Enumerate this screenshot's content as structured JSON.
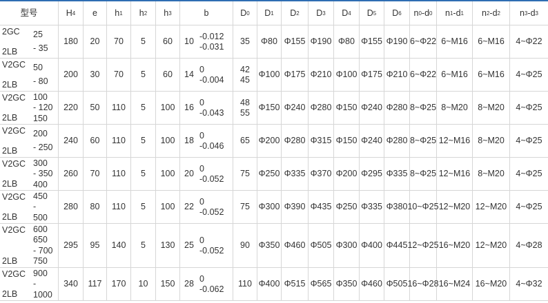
{
  "accent_color": "#2f6db3",
  "headers": [
    [
      {
        "t": "型号"
      }
    ],
    [
      {
        "t": "H"
      },
      {
        "s": "4"
      }
    ],
    [
      {
        "t": "e"
      }
    ],
    [
      {
        "t": "h"
      },
      {
        "s": "1"
      }
    ],
    [
      {
        "t": "h"
      },
      {
        "s": "2"
      }
    ],
    [
      {
        "t": "h"
      },
      {
        "s": "3"
      }
    ],
    [
      {
        "t": "b"
      }
    ],
    [
      {
        "t": "D"
      },
      {
        "s": "0"
      }
    ],
    [
      {
        "t": "D"
      },
      {
        "s": "1"
      }
    ],
    [
      {
        "t": "D"
      },
      {
        "s": "2"
      }
    ],
    [
      {
        "t": "D"
      },
      {
        "s": "3"
      }
    ],
    [
      {
        "t": "D"
      },
      {
        "s": "4"
      }
    ],
    [
      {
        "t": "D"
      },
      {
        "s": "5"
      }
    ],
    [
      {
        "t": "D"
      },
      {
        "s": "6"
      }
    ],
    [
      {
        "t": "n"
      },
      {
        "s": "0"
      },
      {
        "t": "-d"
      },
      {
        "s": "0"
      }
    ],
    [
      {
        "t": "n"
      },
      {
        "s": "1"
      },
      {
        "t": "-d"
      },
      {
        "s": "1"
      }
    ],
    [
      {
        "t": "n"
      },
      {
        "s": "2"
      },
      {
        "t": "-d"
      },
      {
        "s": "2"
      }
    ],
    [
      {
        "t": "n"
      },
      {
        "s": "3"
      },
      {
        "t": "-d"
      },
      {
        "s": "3"
      }
    ]
  ],
  "rows": [
    {
      "model_top": "2GC",
      "model_bottom": "2LB",
      "sizes": [
        "25",
        "- 35"
      ],
      "H4": "180",
      "e": "20",
      "h1": "70",
      "h2": "5",
      "h3": "60",
      "b": "10",
      "b_tol": [
        "-0.012",
        "-0.031"
      ],
      "D0": [
        "35"
      ],
      "D1": "Φ80",
      "D2": "Φ155",
      "D3": "Φ190",
      "D4": "Φ80",
      "D5": "Φ155",
      "D6": "Φ190",
      "n0d0": "6~Φ22",
      "n1d1": "6~M16",
      "n2d2": "6~M16",
      "n3d3": "4~Φ22"
    },
    {
      "model_top": "V2GC",
      "model_bottom": "2LB",
      "sizes": [
        "50",
        "- 80"
      ],
      "H4": "200",
      "e": "30",
      "h1": "70",
      "h2": "5",
      "h3": "60",
      "b": "14",
      "b_tol": [
        "0",
        "-0.004"
      ],
      "D0": [
        "42",
        "45"
      ],
      "D1": "Φ100",
      "D2": "Φ175",
      "D3": "Φ210",
      "D4": "Φ100",
      "D5": "Φ175",
      "D6": "Φ210",
      "n0d0": "6~Φ22",
      "n1d1": "6~M16",
      "n2d2": "6~M16",
      "n3d3": "4~Φ25"
    },
    {
      "model_top": "V2GC",
      "model_bottom": "2LB",
      "sizes": [
        "100",
        "- 120",
        "150"
      ],
      "H4": "220",
      "e": "50",
      "h1": "110",
      "h2": "5",
      "h3": "100",
      "b": "16",
      "b_tol": [
        "0",
        "-0.043"
      ],
      "D0": [
        "48",
        "55"
      ],
      "D1": "Φ150",
      "D2": "Φ240",
      "D3": "Φ280",
      "D4": "Φ150",
      "D5": "Φ240",
      "D6": "Φ280",
      "n0d0": "8~Φ25",
      "n1d1": "8~M20",
      "n2d2": "8~M20",
      "n3d3": "4~Φ25"
    },
    {
      "model_top": "V2GC",
      "model_bottom": "2LB",
      "sizes": [
        "200",
        "- 250"
      ],
      "H4": "240",
      "e": "60",
      "h1": "110",
      "h2": "5",
      "h3": "100",
      "b": "18",
      "b_tol": [
        "0",
        "-0.046"
      ],
      "D0": [
        "65"
      ],
      "D1": "Φ200",
      "D2": "Φ280",
      "D3": "Φ315",
      "D4": "Φ150",
      "D5": "Φ240",
      "D6": "Φ280",
      "n0d0": "8~Φ25",
      "n1d1": "12~M16",
      "n2d2": "8~M20",
      "n3d3": "4~Φ25"
    },
    {
      "model_top": "V2GC",
      "model_bottom": "2LB",
      "sizes": [
        "300",
        "- 350",
        "400"
      ],
      "H4": "260",
      "e": "70",
      "h1": "110",
      "h2": "5",
      "h3": "100",
      "b": "20",
      "b_tol": [
        "0",
        "-0.052"
      ],
      "D0": [
        "75"
      ],
      "D1": "Φ250",
      "D2": "Φ335",
      "D3": "Φ370",
      "D4": "Φ200",
      "D5": "Φ295",
      "D6": "Φ335",
      "n0d0": "8~Φ25",
      "n1d1": "12~M16",
      "n2d2": "8~M20",
      "n3d3": "4~Φ25"
    },
    {
      "model_top": "V2GC",
      "model_bottom": "2LB",
      "sizes": [
        "450",
        "-",
        "500"
      ],
      "H4": "280",
      "e": "80",
      "h1": "110",
      "h2": "5",
      "h3": "100",
      "b": "22",
      "b_tol": [
        "0",
        "-0.052"
      ],
      "D0": [
        "75"
      ],
      "D1": "Φ300",
      "D2": "Φ390",
      "D3": "Φ435",
      "D4": "Φ250",
      "D5": "Φ335",
      "D6": "Φ380",
      "n0d0": "10~Φ25",
      "n1d1": "12~M20",
      "n2d2": "12~M20",
      "n3d3": "4~Φ25"
    },
    {
      "model_top": "V2GC",
      "model_bottom": "2LB",
      "sizes": [
        "600",
        "650",
        "- 700",
        "750"
      ],
      "H4": "295",
      "e": "95",
      "h1": "140",
      "h2": "5",
      "h3": "130",
      "b": "25",
      "b_tol": [
        "0",
        "-0.052"
      ],
      "D0": [
        "90"
      ],
      "D1": "Φ350",
      "D2": "Φ460",
      "D3": "Φ505",
      "D4": "Φ300",
      "D5": "Φ400",
      "D6": "Φ445",
      "n0d0": "12~Φ25",
      "n1d1": "16~M20",
      "n2d2": "12~M20",
      "n3d3": "4~Φ28"
    },
    {
      "model_top": "V2GC",
      "model_bottom": "2LB",
      "sizes": [
        "900",
        "-",
        "1000"
      ],
      "H4": "340",
      "e": "117",
      "h1": "170",
      "h2": "10",
      "h3": "150",
      "b": "28",
      "b_tol": [
        "0",
        "-0.062"
      ],
      "D0": [
        "110"
      ],
      "D1": "Φ400",
      "D2": "Φ515",
      "D3": "Φ565",
      "D4": "Φ350",
      "D5": "Φ460",
      "D6": "Φ505",
      "n0d0": "16~Φ28",
      "n1d1": "16~M24",
      "n2d2": "16~M20",
      "n3d3": "4~Φ32"
    }
  ]
}
